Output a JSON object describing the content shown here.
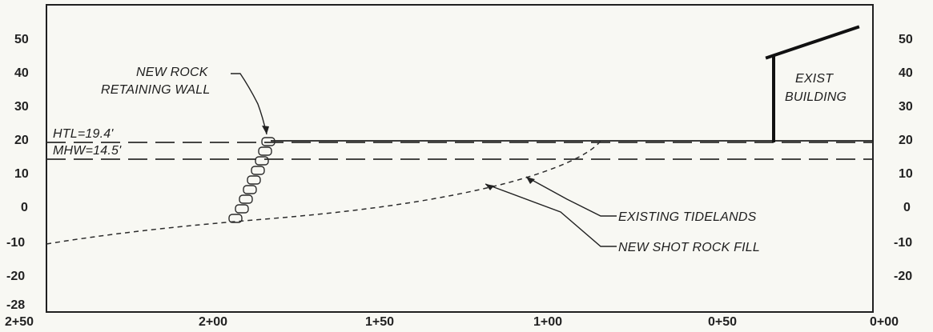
{
  "drawing": {
    "y_axis_left_labels": [
      "50",
      "40",
      "30",
      "20",
      "10",
      "0",
      "-10",
      "-20",
      "-28"
    ],
    "y_axis_right_labels": [
      "50",
      "40",
      "30",
      "20",
      "10",
      "0",
      "-10",
      "-20"
    ],
    "x_axis_labels": [
      "2+50",
      "2+00",
      "1+50",
      "1+00",
      "0+50",
      "0+00"
    ],
    "annotations": {
      "new_rock_wall_line1": "NEW ROCK",
      "new_rock_wall_line2": "RETAINING WALL",
      "htl": "HTL=19.4'",
      "mhw": "MHW=14.5'",
      "exist_building_line1": "EXIST",
      "exist_building_line2": "BUILDING",
      "existing_tidelands": "EXISTING TIDELANDS",
      "new_shot_rock_fill": "NEW SHOT ROCK FILL"
    }
  }
}
